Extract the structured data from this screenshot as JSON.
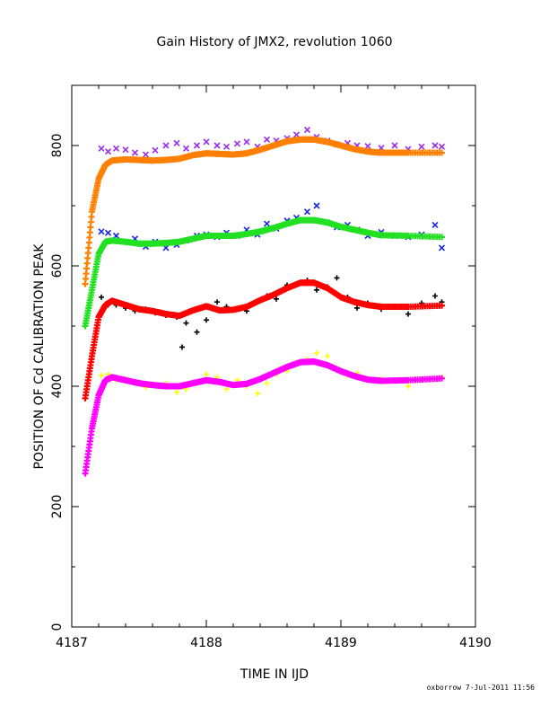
{
  "chart_data": {
    "type": "scatter",
    "title": "Gain History of JMX2, revolution 1060",
    "xlabel": "TIME IN IJD",
    "ylabel": "POSITION OF Cd CALIBRATION PEAK",
    "xlim": [
      4187,
      4190
    ],
    "ylim": [
      0,
      900
    ],
    "xticks": [
      4187,
      4188,
      4189,
      4190
    ],
    "yticks": [
      0,
      200,
      400,
      600,
      800
    ],
    "grid": false,
    "series": [
      {
        "color": "#9a2cf0",
        "marker": "x",
        "kind": "points",
        "x": [
          4187.22,
          4187.27,
          4187.33,
          4187.4,
          4187.47,
          4187.55,
          4187.62,
          4187.7,
          4187.78,
          4187.85,
          4187.93,
          4188.0,
          4188.08,
          4188.15,
          4188.23,
          4188.3,
          4188.38,
          4188.45,
          4188.52,
          4188.6,
          4188.67,
          4188.75,
          4188.82,
          4188.9,
          4188.97,
          4189.05,
          4189.12,
          4189.2,
          4189.3,
          4189.4,
          4189.5,
          4189.6,
          4189.7,
          4189.75
        ],
        "y": [
          795,
          790,
          795,
          793,
          788,
          785,
          792,
          800,
          804,
          795,
          800,
          806,
          800,
          798,
          803,
          806,
          798,
          810,
          808,
          812,
          818,
          826,
          814,
          808,
          802,
          804,
          800,
          799,
          796,
          800,
          794,
          798,
          800,
          798
        ]
      },
      {
        "color": "#ff8000",
        "marker": "+",
        "kind": "fit",
        "x": [
          4187.1,
          4187.15,
          4187.2,
          4187.25,
          4187.3,
          4187.4,
          4187.5,
          4187.6,
          4187.7,
          4187.8,
          4187.9,
          4188.0,
          4188.1,
          4188.2,
          4188.3,
          4188.4,
          4188.5,
          4188.6,
          4188.7,
          4188.8,
          4188.9,
          4189.0,
          4189.1,
          4189.2,
          4189.3,
          4189.5,
          4189.75
        ],
        "y": [
          570,
          690,
          745,
          768,
          775,
          777,
          776,
          775,
          776,
          778,
          784,
          787,
          786,
          785,
          787,
          793,
          800,
          807,
          810,
          810,
          806,
          800,
          794,
          790,
          788,
          788,
          788
        ]
      },
      {
        "color": "#1428e6",
        "marker": "x",
        "kind": "points",
        "x": [
          4187.22,
          4187.27,
          4187.33,
          4187.4,
          4187.47,
          4187.55,
          4187.62,
          4187.7,
          4187.78,
          4187.85,
          4187.93,
          4188.0,
          4188.08,
          4188.15,
          4188.23,
          4188.3,
          4188.38,
          4188.45,
          4188.52,
          4188.6,
          4188.67,
          4188.75,
          4188.82,
          4188.9,
          4188.97,
          4189.05,
          4189.12,
          4189.2,
          4189.3,
          4189.4,
          4189.5,
          4189.6,
          4189.7,
          4189.75
        ],
        "y": [
          657,
          655,
          650,
          640,
          645,
          632,
          640,
          630,
          635,
          642,
          650,
          652,
          648,
          655,
          650,
          660,
          652,
          670,
          662,
          675,
          680,
          690,
          700,
          672,
          664,
          668,
          660,
          650,
          656,
          650,
          648,
          652,
          668,
          630
        ]
      },
      {
        "color": "#22e022",
        "marker": "+",
        "kind": "fit",
        "x": [
          4187.1,
          4187.15,
          4187.2,
          4187.25,
          4187.3,
          4187.4,
          4187.5,
          4187.6,
          4187.7,
          4187.8,
          4187.9,
          4188.0,
          4188.1,
          4188.2,
          4188.3,
          4188.4,
          4188.5,
          4188.6,
          4188.7,
          4188.8,
          4188.9,
          4189.0,
          4189.1,
          4189.2,
          4189.3,
          4189.5,
          4189.75
        ],
        "y": [
          500,
          560,
          620,
          640,
          642,
          640,
          637,
          637,
          638,
          640,
          645,
          650,
          650,
          650,
          653,
          657,
          663,
          670,
          676,
          676,
          672,
          665,
          660,
          655,
          651,
          650,
          648
        ]
      },
      {
        "color": "#000000",
        "marker": "+",
        "kind": "points",
        "x": [
          4187.22,
          4187.27,
          4187.33,
          4187.4,
          4187.47,
          4187.55,
          4187.62,
          4187.7,
          4187.78,
          4187.82,
          4187.85,
          4187.93,
          4188.0,
          4188.08,
          4188.15,
          4188.23,
          4188.3,
          4188.38,
          4188.45,
          4188.52,
          4188.6,
          4188.67,
          4188.75,
          4188.82,
          4188.9,
          4188.97,
          4189.05,
          4189.12,
          4189.2,
          4189.3,
          4189.4,
          4189.5,
          4189.6,
          4189.7,
          4189.75
        ],
        "y": [
          548,
          535,
          535,
          530,
          525,
          528,
          522,
          518,
          515,
          465,
          505,
          490,
          510,
          540,
          532,
          528,
          525,
          540,
          550,
          545,
          568,
          570,
          576,
          560,
          565,
          580,
          548,
          530,
          538,
          528,
          532,
          520,
          538,
          550,
          540
        ]
      },
      {
        "color": "#ff0000",
        "marker": "+",
        "kind": "fit",
        "x": [
          4187.1,
          4187.15,
          4187.2,
          4187.25,
          4187.3,
          4187.4,
          4187.5,
          4187.6,
          4187.7,
          4187.8,
          4187.9,
          4188.0,
          4188.1,
          4188.2,
          4188.3,
          4188.4,
          4188.5,
          4188.6,
          4188.7,
          4188.8,
          4188.9,
          4189.0,
          4189.1,
          4189.2,
          4189.3,
          4189.5,
          4189.75
        ],
        "y": [
          380,
          450,
          515,
          535,
          542,
          535,
          528,
          525,
          520,
          517,
          526,
          533,
          526,
          527,
          532,
          543,
          552,
          563,
          572,
          572,
          563,
          548,
          540,
          535,
          532,
          532,
          534
        ]
      },
      {
        "color": "#ffff00",
        "marker": "+",
        "kind": "points",
        "x": [
          4187.22,
          4187.27,
          4187.33,
          4187.4,
          4187.47,
          4187.55,
          4187.62,
          4187.7,
          4187.78,
          4187.85,
          4187.93,
          4188.0,
          4188.08,
          4188.15,
          4188.23,
          4188.3,
          4188.38,
          4188.45,
          4188.52,
          4188.6,
          4188.67,
          4188.75,
          4188.82,
          4188.9,
          4188.97,
          4189.05,
          4189.12,
          4189.2,
          4189.3,
          4189.4,
          4189.5,
          4189.6,
          4189.7,
          4189.75
        ],
        "y": [
          418,
          420,
          410,
          412,
          405,
          398,
          403,
          405,
          390,
          395,
          405,
          420,
          415,
          395,
          410,
          400,
          388,
          405,
          420,
          425,
          440,
          445,
          455,
          450,
          430,
          418,
          422,
          410,
          412,
          408,
          400,
          410,
          412,
          415
        ]
      },
      {
        "color": "#ff00ff",
        "marker": "+",
        "kind": "fit",
        "x": [
          4187.1,
          4187.15,
          4187.2,
          4187.25,
          4187.3,
          4187.4,
          4187.5,
          4187.6,
          4187.7,
          4187.8,
          4187.9,
          4188.0,
          4188.1,
          4188.2,
          4188.3,
          4188.4,
          4188.5,
          4188.6,
          4188.7,
          4188.8,
          4188.9,
          4189.0,
          4189.1,
          4189.2,
          4189.3,
          4189.5,
          4189.75
        ],
        "y": [
          255,
          330,
          385,
          410,
          415,
          410,
          405,
          402,
          400,
          400,
          405,
          410,
          407,
          402,
          404,
          412,
          422,
          432,
          440,
          441,
          435,
          425,
          417,
          411,
          409,
          410,
          413
        ]
      }
    ]
  },
  "footer": "oxborrow 7-Jul-2011 11:56"
}
